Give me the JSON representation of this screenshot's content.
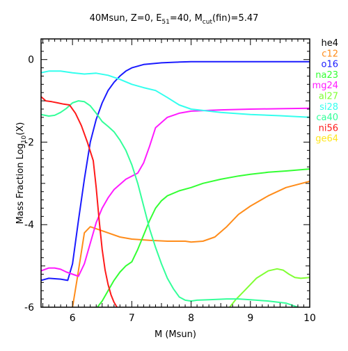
{
  "chart_data": {
    "type": "line",
    "title_parts": {
      "a": "40Msun, Z=0, E",
      "a_sub": "51",
      "b": "=40, M",
      "b_sub": "cut",
      "c": "(fin)=5.47"
    },
    "xlabel": "M (Msun)",
    "ylabel_parts": {
      "a": "Mass Fraction Log",
      "a_sub": "10",
      "b": "(X)"
    },
    "xlim": [
      5.47,
      10
    ],
    "ylim": [
      -6,
      0.5
    ],
    "xticks": [
      6,
      7,
      8,
      9,
      10
    ],
    "yticks": [
      0,
      -2,
      -4,
      -6
    ],
    "legend_position": "right-outside",
    "series": [
      {
        "name": "he4",
        "color": "#000000",
        "x": [],
        "y": []
      },
      {
        "name": "c12",
        "color": "#ff8c1a",
        "x": [
          6.0,
          6.08,
          6.2,
          6.3,
          6.5,
          6.8,
          7.0,
          7.3,
          7.6,
          7.9,
          8.0,
          8.2,
          8.4,
          8.6,
          8.8,
          9.0,
          9.3,
          9.6,
          10.0
        ],
        "y": [
          -6.0,
          -5.3,
          -4.2,
          -4.05,
          -4.15,
          -4.3,
          -4.35,
          -4.38,
          -4.4,
          -4.4,
          -4.42,
          -4.4,
          -4.3,
          -4.05,
          -3.75,
          -3.55,
          -3.3,
          -3.1,
          -2.95
        ]
      },
      {
        "name": "o16",
        "color": "#1a1aff",
        "x": [
          5.47,
          5.6,
          5.8,
          5.92,
          6.0,
          6.1,
          6.2,
          6.3,
          6.4,
          6.5,
          6.6,
          6.7,
          6.8,
          6.9,
          7.0,
          7.2,
          7.5,
          7.8,
          8.0,
          8.5,
          9.0,
          9.5,
          10.0
        ],
        "y": [
          -5.35,
          -5.3,
          -5.32,
          -5.35,
          -4.95,
          -3.9,
          -2.9,
          -2.0,
          -1.45,
          -1.05,
          -0.75,
          -0.55,
          -0.4,
          -0.28,
          -0.2,
          -0.12,
          -0.08,
          -0.06,
          -0.05,
          -0.05,
          -0.05,
          -0.05,
          -0.05
        ]
      },
      {
        "name": "na23",
        "color": "#33ff33",
        "x": [
          6.42,
          6.5,
          6.6,
          6.7,
          6.8,
          6.9,
          7.0,
          7.1,
          7.2,
          7.3,
          7.4,
          7.5,
          7.6,
          7.8,
          8.0,
          8.2,
          8.5,
          8.8,
          9.0,
          9.3,
          9.6,
          10.0
        ],
        "y": [
          -6.0,
          -5.85,
          -5.6,
          -5.35,
          -5.15,
          -5.0,
          -4.9,
          -4.6,
          -4.25,
          -3.9,
          -3.6,
          -3.42,
          -3.3,
          -3.18,
          -3.1,
          -3.0,
          -2.9,
          -2.82,
          -2.78,
          -2.73,
          -2.7,
          -2.65
        ]
      },
      {
        "name": "mg24",
        "color": "#ff1aff",
        "x": [
          5.47,
          5.6,
          5.7,
          5.8,
          5.9,
          6.0,
          6.1,
          6.2,
          6.3,
          6.4,
          6.5,
          6.6,
          6.7,
          6.9,
          7.1,
          7.2,
          7.3,
          7.4,
          7.6,
          7.8,
          8.0,
          8.5,
          9.0,
          9.5,
          10.0
        ],
        "y": [
          -5.12,
          -5.05,
          -5.05,
          -5.08,
          -5.15,
          -5.2,
          -5.25,
          -4.95,
          -4.45,
          -3.95,
          -3.6,
          -3.35,
          -3.15,
          -2.9,
          -2.75,
          -2.5,
          -2.1,
          -1.65,
          -1.4,
          -1.3,
          -1.25,
          -1.22,
          -1.2,
          -1.19,
          -1.18
        ]
      },
      {
        "name": "al27",
        "color": "#80ff33",
        "x": [
          8.65,
          8.75,
          8.9,
          9.1,
          9.3,
          9.45,
          9.55,
          9.65,
          9.75,
          9.85,
          10.0
        ],
        "y": [
          -6.0,
          -5.82,
          -5.6,
          -5.3,
          -5.12,
          -5.07,
          -5.1,
          -5.2,
          -5.28,
          -5.3,
          -5.28
        ]
      },
      {
        "name": "si28",
        "color": "#33ffee",
        "x": [
          5.47,
          5.6,
          5.8,
          6.0,
          6.2,
          6.4,
          6.6,
          6.8,
          7.0,
          7.2,
          7.4,
          7.6,
          7.8,
          8.0,
          8.5,
          9.0,
          9.5,
          10.0
        ],
        "y": [
          -0.32,
          -0.28,
          -0.28,
          -0.32,
          -0.35,
          -0.33,
          -0.38,
          -0.48,
          -0.6,
          -0.68,
          -0.75,
          -0.92,
          -1.1,
          -1.2,
          -1.28,
          -1.33,
          -1.36,
          -1.4
        ]
      },
      {
        "name": "ca40",
        "color": "#33ff99",
        "x": [
          5.47,
          5.6,
          5.7,
          5.8,
          5.9,
          6.0,
          6.1,
          6.2,
          6.3,
          6.4,
          6.5,
          6.6,
          6.7,
          6.8,
          6.9,
          7.0,
          7.1,
          7.2,
          7.3,
          7.4,
          7.5,
          7.6,
          7.7,
          7.8,
          7.9,
          8.0,
          8.1,
          8.3,
          8.6,
          8.8,
          9.0,
          9.3,
          9.6,
          10.0
        ],
        "y": [
          -1.33,
          -1.37,
          -1.35,
          -1.28,
          -1.18,
          -1.05,
          -1.0,
          -1.02,
          -1.12,
          -1.3,
          -1.5,
          -1.62,
          -1.75,
          -1.95,
          -2.2,
          -2.55,
          -3.0,
          -3.55,
          -4.1,
          -4.55,
          -4.95,
          -5.3,
          -5.55,
          -5.75,
          -5.83,
          -5.85,
          -5.83,
          -5.82,
          -5.8,
          -5.8,
          -5.82,
          -5.85,
          -5.9,
          -6.1
        ]
      },
      {
        "name": "ni56",
        "color": "#ff1a1a",
        "x": [
          5.47,
          5.55,
          5.65,
          5.75,
          5.85,
          5.95,
          6.05,
          6.15,
          6.25,
          6.35,
          6.4,
          6.45,
          6.5,
          6.55,
          6.6,
          6.65,
          6.7,
          6.75
        ],
        "y": [
          -0.9,
          -1.0,
          -1.02,
          -1.05,
          -1.08,
          -1.1,
          -1.3,
          -1.6,
          -2.0,
          -2.45,
          -3.1,
          -3.9,
          -4.6,
          -5.1,
          -5.45,
          -5.7,
          -5.88,
          -6.0
        ]
      },
      {
        "name": "ge64",
        "color": "#ffe61a",
        "x": [],
        "y": []
      }
    ]
  }
}
